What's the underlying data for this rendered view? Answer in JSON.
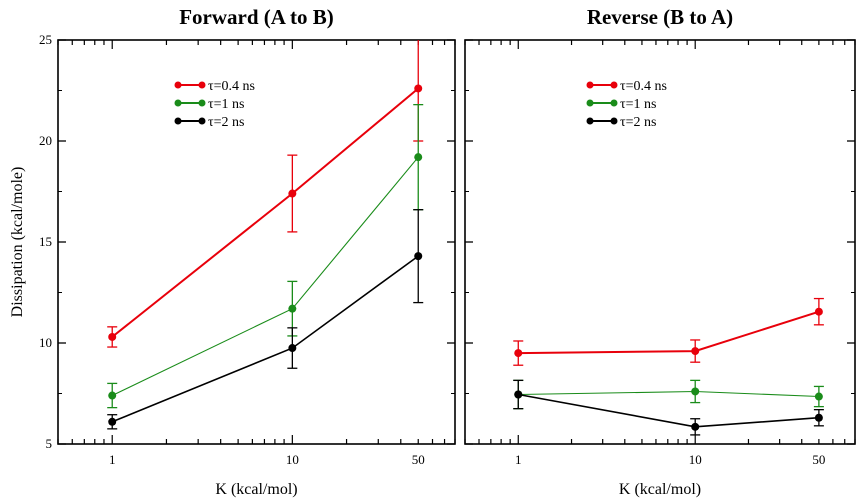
{
  "ylabel": "Dissipation (kcal/mole)",
  "chart_data": [
    {
      "type": "line",
      "title": "Forward (A to B)",
      "xlabel": "K (kcal/mol)",
      "ylabel": "Dissipation (kcal/mole)",
      "x_scale": "log",
      "x_ticks": [
        "1",
        "10",
        "50"
      ],
      "x_tick_values": [
        1,
        10,
        50
      ],
      "xlim": [
        0.5,
        80
      ],
      "ylim": [
        5,
        25
      ],
      "y_ticks": [
        5,
        10,
        15,
        20,
        25
      ],
      "legend_position": "top-left",
      "series": [
        {
          "name": "τ=0.4 ns",
          "color": "#e8000b",
          "x": [
            1,
            10,
            50
          ],
          "y": [
            10.3,
            17.4,
            22.6
          ],
          "err": [
            0.5,
            1.9,
            2.6
          ]
        },
        {
          "name": "τ=1 ns",
          "color": "#1a8c1a",
          "x": [
            1,
            10,
            50
          ],
          "y": [
            7.4,
            11.7,
            19.2
          ],
          "err": [
            0.6,
            1.35,
            2.6
          ]
        },
        {
          "name": "τ=2 ns",
          "color": "#000000",
          "x": [
            1,
            10,
            50
          ],
          "y": [
            6.1,
            9.75,
            14.3
          ],
          "err": [
            0.35,
            1.0,
            2.3
          ]
        }
      ]
    },
    {
      "type": "line",
      "title": "Reverse (B to A)",
      "xlabel": "K (kcal/mol)",
      "ylabel": "",
      "x_scale": "log",
      "x_ticks": [
        "1",
        "10",
        "50"
      ],
      "x_tick_values": [
        1,
        10,
        50
      ],
      "xlim": [
        0.5,
        80
      ],
      "ylim": [
        5,
        25
      ],
      "y_ticks": [
        5,
        10,
        15,
        20,
        25
      ],
      "legend_position": "top-center",
      "series": [
        {
          "name": "τ=0.4 ns",
          "color": "#e8000b",
          "x": [
            1,
            10,
            50
          ],
          "y": [
            9.5,
            9.6,
            11.55
          ],
          "err": [
            0.6,
            0.55,
            0.65
          ]
        },
        {
          "name": "τ=1 ns",
          "color": "#1a8c1a",
          "x": [
            1,
            10,
            50
          ],
          "y": [
            7.45,
            7.6,
            7.35
          ],
          "err": [
            0.7,
            0.55,
            0.5
          ]
        },
        {
          "name": "τ=2 ns",
          "color": "#000000",
          "x": [
            1,
            10,
            50
          ],
          "y": [
            7.45,
            5.85,
            6.3
          ],
          "err": [
            0.7,
            0.4,
            0.4
          ]
        }
      ]
    }
  ]
}
